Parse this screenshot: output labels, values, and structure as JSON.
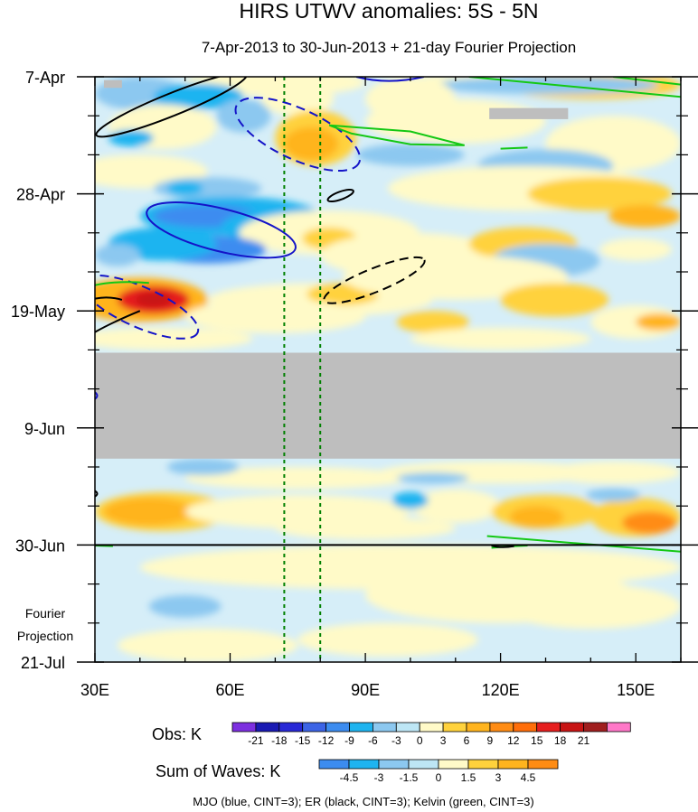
{
  "chart_data": {
    "type": "heatmap",
    "title": "HIRS UTWV anomalies: 5S - 5N",
    "subtitle": "7-Apr-2013 to 30-Jun-2013 + 21-day Fourier Projection",
    "x_ticks": [
      {
        "value": 30,
        "label": "30E"
      },
      {
        "value": 60,
        "label": "60E"
      },
      {
        "value": 90,
        "label": "90E"
      },
      {
        "value": 120,
        "label": "120E"
      },
      {
        "value": 150,
        "label": "150E"
      }
    ],
    "xlim": [
      30,
      160
    ],
    "y_ticks": [
      {
        "label": "7-Apr",
        "day": 0
      },
      {
        "label": "28-Apr",
        "day": 21
      },
      {
        "label": "19-May",
        "day": 42
      },
      {
        "label": "9-Jun",
        "day": 63
      },
      {
        "label": "30-Jun",
        "day": 84
      },
      {
        "label": "21-Jul",
        "day": 105
      }
    ],
    "projection_label": [
      "Fourier",
      "Projection"
    ],
    "projection_start_day": 84,
    "missing_data_days": [
      49.5,
      68.5
    ],
    "reference_longitudes": [
      72,
      80
    ],
    "obs_colorbar": {
      "title": "Obs: K",
      "labels": [
        "-21",
        "-18",
        "-15",
        "-12",
        "-9",
        "-6",
        "-3",
        "0",
        "3",
        "6",
        "9",
        "12",
        "15",
        "18",
        "21"
      ],
      "colors": [
        "#7d2fe0",
        "#1a1ab3",
        "#2828d6",
        "#3c64e6",
        "#3c8cf0",
        "#1eb4f0",
        "#8cc8f0",
        "#bde6f5",
        "#fffac8",
        "#ffd23c",
        "#ffb41e",
        "#ff8c14",
        "#ff6e0a",
        "#e61e1e",
        "#c81414",
        "#a01e1e",
        "#ff78c8"
      ]
    },
    "waves_colorbar": {
      "title": "Sum of Waves: K",
      "labels": [
        "-4.5",
        "-3",
        "-1.5",
        "0",
        "1.5",
        "3",
        "4.5"
      ],
      "colors": [
        "#3c8cf0",
        "#1eb4f0",
        "#8cc8f0",
        "#bde6f5",
        "#fffac8",
        "#ffd23c",
        "#ffb41e",
        "#ff8c14"
      ]
    },
    "wave_legend": "MJO (blue, CINT=3); ER (black, CINT=3); Kelvin (green, CINT=3)",
    "contour_colors": {
      "mjo": "#1414c8",
      "er": "#000000",
      "kelvin": "#14c814"
    }
  }
}
